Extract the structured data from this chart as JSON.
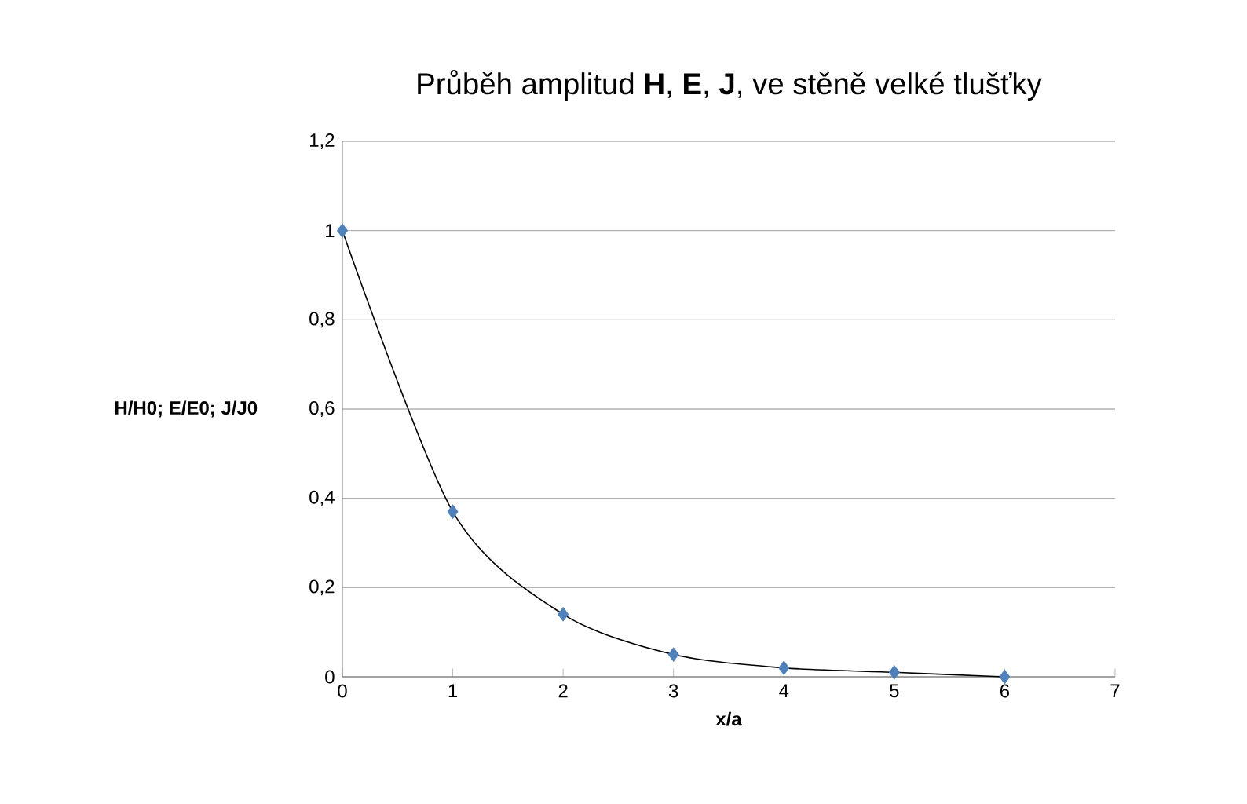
{
  "chart_data": {
    "type": "scatter",
    "title": "Průběh amplitud **H**, **E**, **J**, ve stěně velké tlušťky",
    "xlabel": "x/a",
    "ylabel": "H/H0; E/E0; J/J0",
    "x": [
      0,
      1,
      2,
      3,
      4,
      5,
      6
    ],
    "series": [
      {
        "color": "#4f81bd",
        "marker": "diamond",
        "values": [
          1,
          0.37,
          0.14,
          0.05,
          0.02,
          0.01,
          0.0
        ]
      },
      {
        "type": "line",
        "color": "#000000",
        "marker": "none",
        "line_style": "solid",
        "x": [
          0,
          1,
          2,
          3,
          4,
          5,
          6
        ],
        "values": [
          1,
          0.37,
          0.14,
          0.05,
          0.02,
          0.01,
          0.0
        ]
      }
    ],
    "xlim": [
      0,
      7
    ],
    "ylim": [
      0,
      1.2
    ],
    "xticks": [
      0,
      1,
      2,
      3,
      4,
      5,
      6,
      7
    ],
    "yticks": [
      0,
      {
        "value": 0.2,
        "label": "0,2"
      },
      {
        "value": 0.4,
        "label": "0,4"
      },
      {
        "value": 0.6,
        "label": "0,6"
      },
      {
        "value": 0.8,
        "label": "0,8"
      },
      1,
      {
        "value": 1.2,
        "label": "1,2"
      }
    ],
    "grid": "y"
  }
}
